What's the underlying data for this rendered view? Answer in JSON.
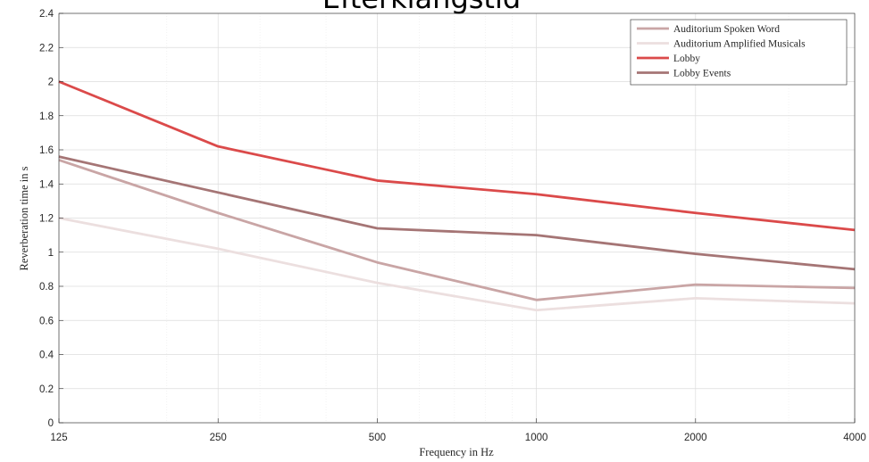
{
  "chart_data": {
    "type": "line",
    "title": "Efterklangstid",
    "xlabel": "Frequency in Hz",
    "ylabel": "Reverberation time in s",
    "x_scale": "log",
    "categories": [
      "125",
      "250",
      "500",
      "1000",
      "2000",
      "4000"
    ],
    "x": [
      125,
      250,
      500,
      1000,
      2000,
      4000
    ],
    "ylim": [
      0,
      2.4
    ],
    "yticks": [
      "0",
      "0.2",
      "0.4",
      "0.6",
      "0.8",
      "1",
      "1.2",
      "1.4",
      "1.6",
      "1.8",
      "2",
      "2.2",
      "2.4"
    ],
    "grid": true,
    "legend_position": "top-right",
    "series": [
      {
        "name": "Auditorium Spoken Word",
        "color": "#c9a5a5",
        "values": [
          1.54,
          1.23,
          0.94,
          0.72,
          0.81,
          0.79
        ]
      },
      {
        "name": "Auditorium Amplified Musicals",
        "color": "#ecdfdf",
        "values": [
          1.2,
          1.02,
          0.82,
          0.66,
          0.73,
          0.7
        ]
      },
      {
        "name": "Lobby",
        "color": "#db4a4a",
        "values": [
          2.0,
          1.62,
          1.42,
          1.34,
          1.23,
          1.13
        ]
      },
      {
        "name": "Lobby Events",
        "color": "#a57575",
        "values": [
          1.56,
          1.35,
          1.14,
          1.1,
          0.99,
          0.9
        ]
      }
    ]
  }
}
